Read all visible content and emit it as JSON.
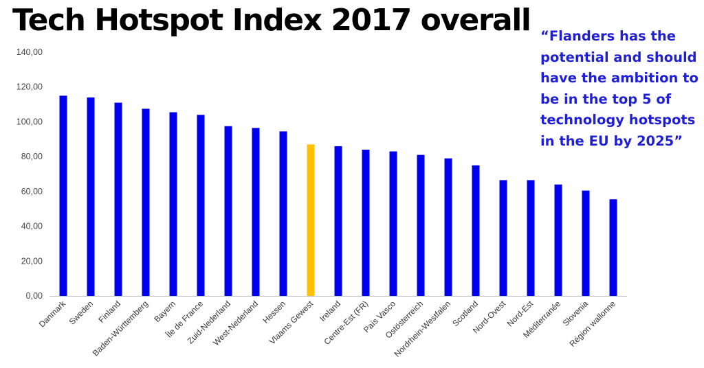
{
  "title": "Tech Hotspot Index 2017 overall",
  "quote": "“Flanders has the potential and should have the ambition to be in the top 5 of technology hotspots in the EU by 2025”",
  "colors": {
    "bar": "#0000ee",
    "highlight": "#ffc000",
    "quote": "#1f1fd6"
  },
  "chart_data": {
    "type": "bar",
    "ylim": [
      0,
      140
    ],
    "yticks": [
      "0,00",
      "20,00",
      "40,00",
      "60,00",
      "80,00",
      "100,00",
      "120,00",
      "140,00"
    ],
    "categories": [
      "Danmark",
      "Sweden",
      "Finland",
      "Baden-Württemberg",
      "Bayern",
      "Île de France",
      "Zuid-Nederland",
      "West-Nederland",
      "Hessen",
      "Vlaams Gewest",
      "Ireland",
      "Centre-Est (FR)",
      "País Vasco",
      "Ostösterreich",
      "Nordrhein-Westfalen",
      "Scotland",
      "Nord-Ovest",
      "Nord-Est",
      "Méditerranée",
      "Slovenia",
      "Région wallonne"
    ],
    "values": [
      115,
      114,
      111,
      107.5,
      105.5,
      104,
      97.5,
      96.5,
      94.5,
      87,
      86,
      84,
      83,
      81,
      79,
      75,
      66.5,
      66.5,
      64,
      60.5,
      55.5
    ],
    "highlight": "Vlaams Gewest",
    "grid": false,
    "legend": "none"
  }
}
